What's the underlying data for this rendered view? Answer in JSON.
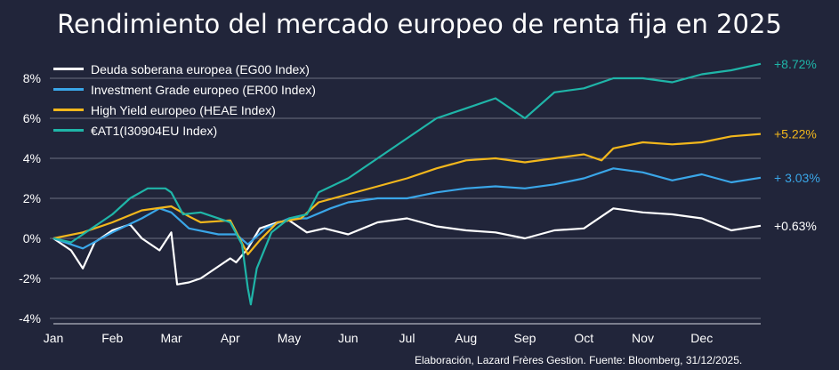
{
  "title": "Rendimiento del mercado europeo de renta fija en 2025",
  "footer": "Elaboración, Lazard Frères Gestion. Fuente: Bloomberg, 31/12/2025.",
  "chart_data": {
    "type": "line",
    "title": "Rendimiento del mercado europeo de renta fija en 2025",
    "xlabel": "",
    "ylabel": "",
    "x_ticks": [
      "Jan",
      "Feb",
      "Mar",
      "Apr",
      "May",
      "Jun",
      "Jul",
      "Aug",
      "Sep",
      "Oct",
      "Nov",
      "Dec"
    ],
    "y_ticks": [
      "8%",
      "6%",
      "4%",
      "2%",
      "0%",
      "-2%",
      "-4%"
    ],
    "y_tick_values": [
      8,
      6,
      4,
      2,
      0,
      -2,
      -4
    ],
    "ylim": [
      -4,
      9
    ],
    "xlim": [
      0,
      12
    ],
    "grid": true,
    "legend_position": "top-left",
    "series": [
      {
        "name": "Deuda soberana europea (EG00 Index)",
        "color": "#ffffff",
        "end_label": "+0.63%",
        "x": [
          0,
          0.3,
          0.5,
          0.7,
          1.0,
          1.3,
          1.5,
          1.8,
          2.0,
          2.1,
          2.3,
          2.5,
          2.8,
          3.0,
          3.1,
          3.3,
          3.5,
          3.8,
          4.0,
          4.3,
          4.6,
          5.0,
          5.5,
          6.0,
          6.5,
          7.0,
          7.5,
          8.0,
          8.5,
          9.0,
          9.5,
          10.0,
          10.5,
          11.0,
          11.5,
          12.0
        ],
        "y": [
          0,
          -0.6,
          -1.5,
          -0.2,
          0.4,
          0.7,
          0.0,
          -0.6,
          0.3,
          -2.3,
          -2.2,
          -2.0,
          -1.4,
          -1.0,
          -1.2,
          -0.5,
          0.5,
          0.8,
          0.9,
          0.3,
          0.5,
          0.2,
          0.8,
          1.0,
          0.6,
          0.4,
          0.3,
          0.0,
          0.4,
          0.5,
          1.5,
          1.3,
          1.2,
          1.0,
          0.4,
          0.63
        ]
      },
      {
        "name": "Investment Grade europeo (ER00 Index)",
        "color": "#3aa6e8",
        "end_label": "+ 3.03%",
        "x": [
          0,
          0.5,
          1.0,
          1.5,
          1.8,
          2.0,
          2.3,
          2.8,
          3.1,
          3.3,
          3.6,
          4.0,
          4.3,
          4.7,
          5.0,
          5.5,
          6.0,
          6.5,
          7.0,
          7.5,
          8.0,
          8.5,
          9.0,
          9.5,
          10.0,
          10.5,
          11.0,
          11.5,
          12.0
        ],
        "y": [
          0,
          -0.5,
          0.3,
          1.0,
          1.5,
          1.3,
          0.5,
          0.2,
          0.2,
          -0.3,
          0.5,
          1.0,
          1.0,
          1.5,
          1.8,
          2.0,
          2.0,
          2.3,
          2.5,
          2.6,
          2.5,
          2.7,
          3.0,
          3.5,
          3.3,
          2.9,
          3.2,
          2.8,
          3.03
        ]
      },
      {
        "name": "High Yield europeo (HEAE Index)",
        "color": "#f2b71c",
        "end_label": "+5.22%",
        "x": [
          0,
          0.5,
          1.0,
          1.5,
          2.0,
          2.3,
          2.5,
          3.0,
          3.3,
          3.5,
          3.8,
          4.2,
          4.5,
          5.0,
          5.5,
          6.0,
          6.5,
          7.0,
          7.5,
          8.0,
          8.5,
          9.0,
          9.3,
          9.5,
          10.0,
          10.5,
          11.0,
          11.5,
          12.0
        ],
        "y": [
          0,
          0.3,
          0.8,
          1.4,
          1.6,
          1.1,
          0.8,
          0.9,
          -0.8,
          -0.1,
          0.8,
          1.0,
          1.8,
          2.2,
          2.6,
          3.0,
          3.5,
          3.9,
          4.0,
          3.8,
          4.0,
          4.2,
          3.9,
          4.5,
          4.8,
          4.7,
          4.8,
          5.1,
          5.22
        ]
      },
      {
        "name": "€AT1(I30904EU Index)",
        "color": "#1fb5a8",
        "end_label": "+8.72%",
        "x": [
          0,
          0.3,
          0.6,
          1.0,
          1.3,
          1.6,
          1.9,
          2.0,
          2.2,
          2.5,
          3.0,
          3.2,
          3.3,
          3.35,
          3.45,
          3.7,
          4.0,
          4.3,
          4.5,
          5.0,
          5.5,
          6.0,
          6.5,
          7.0,
          7.5,
          8.0,
          8.5,
          9.0,
          9.5,
          10.0,
          10.5,
          11.0,
          11.5,
          12.0
        ],
        "y": [
          0,
          -0.2,
          0.4,
          1.2,
          2.0,
          2.5,
          2.5,
          2.3,
          1.2,
          1.3,
          0.8,
          -0.3,
          -2.5,
          -3.3,
          -1.5,
          0.3,
          1.0,
          1.2,
          2.3,
          3.0,
          4.0,
          5.0,
          6.0,
          6.5,
          7.0,
          6.0,
          7.3,
          7.5,
          8.0,
          8.0,
          7.8,
          8.2,
          8.4,
          8.72
        ]
      }
    ]
  }
}
